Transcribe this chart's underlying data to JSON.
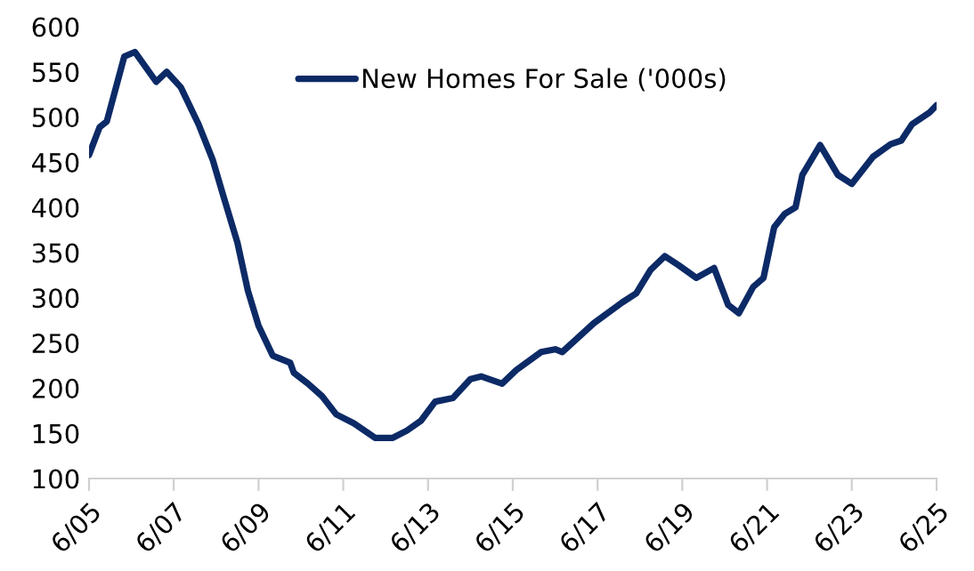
{
  "chart_data": {
    "type": "line",
    "x": [
      "2005-06",
      "2005-09",
      "2005-11",
      "2006-04",
      "2006-07",
      "2007-01",
      "2007-04",
      "2007-08",
      "2008-01",
      "2008-05",
      "2008-08",
      "2008-12",
      "2009-03",
      "2009-06",
      "2009-10",
      "2010-03",
      "2010-04",
      "2010-08",
      "2010-12",
      "2011-04",
      "2011-09",
      "2012-03",
      "2012-08",
      "2012-12",
      "2013-04",
      "2013-08",
      "2014-01",
      "2014-06",
      "2014-09",
      "2015-03",
      "2015-07",
      "2016-02",
      "2016-06",
      "2016-08",
      "2017-05",
      "2018-01",
      "2018-05",
      "2018-09",
      "2019-01",
      "2019-05",
      "2019-10",
      "2020-03",
      "2020-07",
      "2020-10",
      "2021-02",
      "2021-05",
      "2021-08",
      "2021-11",
      "2022-02",
      "2022-04",
      "2022-09",
      "2023-02",
      "2023-06",
      "2023-12",
      "2024-05",
      "2024-08",
      "2024-11",
      "2025-04",
      "2025-06"
    ],
    "series": [
      {
        "name": "New Homes For Sale ('000s)",
        "color": "#0c2a66",
        "values": [
          458,
          489,
          495,
          567,
          572,
          539,
          550,
          533,
          492,
          453,
          413,
          361,
          308,
          269,
          236,
          228,
          217,
          205,
          191,
          171,
          161,
          145,
          145,
          153,
          164,
          185,
          189,
          210,
          213,
          205,
          220,
          240,
          243,
          240,
          272,
          295,
          305,
          331,
          346,
          336,
          322,
          333,
          292,
          283,
          312,
          322,
          378,
          393,
          400,
          436,
          469,
          436,
          426,
          456,
          470,
          474,
          492,
          505,
          513
        ]
      }
    ],
    "xlim": [
      "2005-06",
      "2025-06"
    ],
    "xticks": [
      {
        "value": "2005-06",
        "label": "6/05"
      },
      {
        "value": "2007-06",
        "label": "6/07"
      },
      {
        "value": "2009-06",
        "label": "6/09"
      },
      {
        "value": "2011-06",
        "label": "6/11"
      },
      {
        "value": "2013-06",
        "label": "6/13"
      },
      {
        "value": "2015-06",
        "label": "6/15"
      },
      {
        "value": "2017-06",
        "label": "6/17"
      },
      {
        "value": "2019-06",
        "label": "6/19"
      },
      {
        "value": "2021-06",
        "label": "6/21"
      },
      {
        "value": "2023-06",
        "label": "6/23"
      },
      {
        "value": "2025-06",
        "label": "6/25"
      }
    ],
    "ylim": [
      100,
      600
    ],
    "yticks": [
      100,
      150,
      200,
      250,
      300,
      350,
      400,
      450,
      500,
      550,
      600
    ],
    "legend": "top",
    "grid": false,
    "marker": "none",
    "line_style": "solid"
  }
}
